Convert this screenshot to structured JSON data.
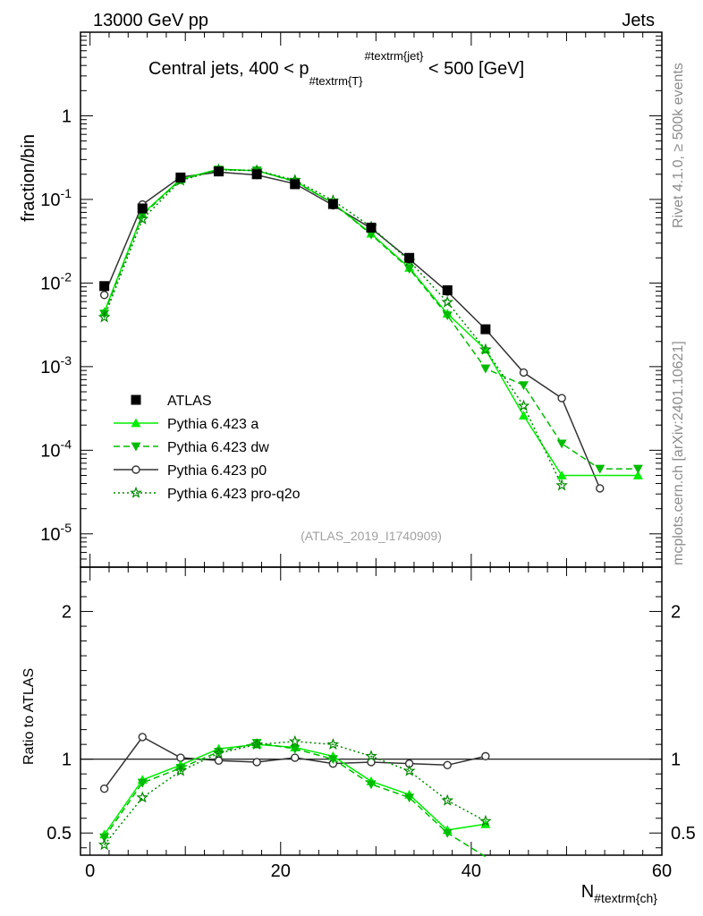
{
  "header": {
    "energy_label": "13000 GeV pp",
    "process_label": "Jets"
  },
  "side": {
    "rivet_label": "Rivet 4.1.0, ≥ 500k events",
    "source_label": "mcplots.cern.ch [arXiv:2401.10621]"
  },
  "colors": {
    "data": "#000000",
    "a": "#00ee00",
    "dw": "#00bb00",
    "p0": "#333333",
    "proq2o": "#008800"
  },
  "chart_data": [
    {
      "type": "line",
      "title": "Central jets, 400 < p_{#textrm{T}}^{#textrm{jet}} < 500 [GeV]",
      "title_parts": {
        "prefix": "Central jets, 400 < p",
        "subscript": "#textrm{T}",
        "superscript": "#textrm{jet}",
        "suffix": " < 500 [GeV]"
      },
      "ylabel": "fraction/bin",
      "yscale": "log",
      "ylim": [
        4e-06,
        10
      ],
      "xlim": [
        -1,
        60
      ],
      "y_tick_labels": [
        "1",
        "10^-1",
        "10^-2",
        "10^-3",
        "10^-4",
        "10^-5"
      ],
      "y_tick_values": [
        1,
        0.1,
        0.01,
        0.001,
        0.0001,
        1e-05
      ],
      "watermark": "(ATLAS_2019_I1740909)",
      "legend_position": "lower-left",
      "series": [
        {
          "key": "data",
          "name": "ATLAS",
          "style": "square-markers",
          "x": [
            1.5,
            5.5,
            9.5,
            13.5,
            17.5,
            21.5,
            25.5,
            29.5,
            33.5,
            37.5,
            41.5
          ],
          "y": [
            0.0092,
            0.078,
            0.183,
            0.216,
            0.2,
            0.152,
            0.088,
            0.046,
            0.02,
            0.0082,
            0.0028
          ]
        },
        {
          "key": "a",
          "name": "Pythia 6.423 a",
          "style": "solid-triangle-up",
          "x": [
            1.5,
            5.5,
            9.5,
            13.5,
            17.5,
            21.5,
            25.5,
            29.5,
            33.5,
            37.5,
            41.5,
            45.5,
            49.5,
            57.5
          ],
          "y": [
            0.0045,
            0.067,
            0.175,
            0.23,
            0.22,
            0.165,
            0.09,
            0.039,
            0.0152,
            0.0043,
            0.0016,
            0.00026,
            5e-05,
            5e-05
          ]
        },
        {
          "key": "dw",
          "name": "Pythia 6.423 dw",
          "style": "dashed-triangle-down",
          "x": [
            1.5,
            5.5,
            9.5,
            13.5,
            17.5,
            21.5,
            25.5,
            29.5,
            33.5,
            37.5,
            41.5,
            45.5,
            49.5,
            53.5,
            57.5
          ],
          "y": [
            0.0043,
            0.065,
            0.172,
            0.227,
            0.222,
            0.163,
            0.09,
            0.038,
            0.0148,
            0.0041,
            0.00095,
            0.0006,
            0.00012,
            6e-05,
            6e-05
          ]
        },
        {
          "key": "p0",
          "name": "Pythia 6.423 p0",
          "style": "solid-open-circle",
          "x": [
            1.5,
            5.5,
            9.5,
            13.5,
            17.5,
            21.5,
            25.5,
            29.5,
            33.5,
            37.5,
            41.5,
            45.5,
            49.5,
            53.5
          ],
          "y": [
            0.0072,
            0.087,
            0.185,
            0.212,
            0.196,
            0.154,
            0.085,
            0.045,
            0.0193,
            0.0079,
            0.0028,
            0.00085,
            0.00042,
            3.5e-05
          ]
        },
        {
          "key": "proq2o",
          "name": "Pythia 6.423 pro-q2o",
          "style": "dotted-open-star",
          "x": [
            1.5,
            5.5,
            9.5,
            13.5,
            17.5,
            21.5,
            25.5,
            29.5,
            33.5,
            37.5,
            41.5,
            45.5,
            49.5
          ],
          "y": [
            0.0039,
            0.058,
            0.168,
            0.226,
            0.222,
            0.17,
            0.097,
            0.047,
            0.0184,
            0.0059,
            0.0016,
            0.00034,
            3.8e-05
          ]
        }
      ]
    },
    {
      "type": "line",
      "title": "",
      "ylabel": "Ratio to ATLAS",
      "xlabel": "N_{#textrm{ch}}",
      "xlabel_parts": {
        "main": "N",
        "subscript": "#textrm{ch}"
      },
      "ylim": [
        0.35,
        2.3
      ],
      "xlim": [
        -1,
        60
      ],
      "x_tick_labels": [
        "0",
        "20",
        "40",
        "60"
      ],
      "x_tick_values": [
        0,
        20,
        40,
        60
      ],
      "y_tick_labels": [
        "2",
        "1",
        "0.5"
      ],
      "y_tick_values": [
        2,
        1,
        0.5
      ],
      "series": [
        {
          "key": "a",
          "name": "Pythia 6.423 a",
          "x": [
            1.5,
            5.5,
            9.5,
            13.5,
            17.5,
            21.5,
            25.5,
            29.5,
            33.5,
            37.5,
            41.5
          ],
          "y": [
            0.49,
            0.86,
            0.96,
            1.07,
            1.1,
            1.08,
            1.02,
            0.85,
            0.76,
            0.52,
            0.56
          ]
        },
        {
          "key": "dw",
          "name": "Pythia 6.423 dw",
          "x": [
            1.5,
            5.5,
            9.5,
            13.5,
            17.5,
            21.5,
            25.5,
            29.5,
            33.5,
            37.5,
            41.5
          ],
          "y": [
            0.47,
            0.84,
            0.94,
            1.05,
            1.11,
            1.07,
            1.0,
            0.83,
            0.74,
            0.5,
            0.34
          ]
        },
        {
          "key": "p0",
          "name": "Pythia 6.423 p0",
          "x": [
            1.5,
            5.5,
            9.5,
            13.5,
            17.5,
            21.5,
            25.5,
            29.5,
            33.5,
            37.5,
            41.5
          ],
          "y": [
            0.8,
            1.15,
            1.01,
            0.99,
            0.98,
            1.01,
            0.97,
            0.98,
            0.97,
            0.96,
            1.02
          ]
        },
        {
          "key": "proq2o",
          "name": "Pythia 6.423 pro-q2o",
          "x": [
            1.5,
            5.5,
            9.5,
            13.5,
            17.5,
            21.5,
            25.5,
            29.5,
            33.5,
            37.5,
            41.5
          ],
          "y": [
            0.42,
            0.74,
            0.92,
            1.04,
            1.1,
            1.12,
            1.1,
            1.02,
            0.92,
            0.72,
            0.58
          ]
        }
      ]
    }
  ]
}
